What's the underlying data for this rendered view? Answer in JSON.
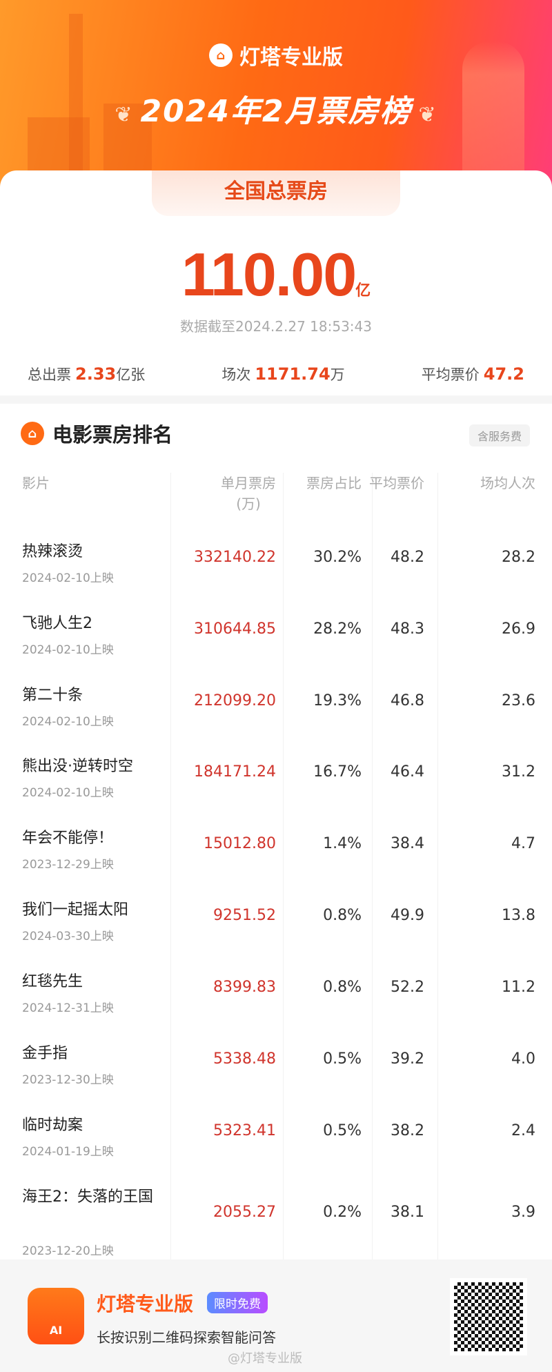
{
  "header": {
    "brand": "灯塔专业版",
    "title": "2024年2月票房榜"
  },
  "summary": {
    "tab": "全国总票房",
    "total": "110.00",
    "unit": "亿",
    "as_of": "数据截至2024.2.27 18:53:43",
    "stats": [
      {
        "label": "总出票",
        "value": "2.33",
        "unit": "亿张"
      },
      {
        "label": "场次",
        "value": "1171.74",
        "unit": "万"
      },
      {
        "label": "平均票价",
        "value": "47.2",
        "unit": ""
      }
    ]
  },
  "ranking": {
    "title": "电影票房排名",
    "note": "含服务费",
    "columns": [
      "影片",
      "单月票房\n(万)",
      "票房占比",
      "平均票价",
      "场均人次"
    ],
    "rows": [
      {
        "name": "热辣滚烫",
        "date": "2024-02-10上映",
        "box": "332140.22",
        "share": "30.2%",
        "price": "48.2",
        "avg": "28.2"
      },
      {
        "name": "飞驰人生2",
        "date": "2024-02-10上映",
        "box": "310644.85",
        "share": "28.2%",
        "price": "48.3",
        "avg": "26.9"
      },
      {
        "name": "第二十条",
        "date": "2024-02-10上映",
        "box": "212099.20",
        "share": "19.3%",
        "price": "46.8",
        "avg": "23.6"
      },
      {
        "name": "熊出没·逆转时空",
        "date": "2024-02-10上映",
        "box": "184171.24",
        "share": "16.7%",
        "price": "46.4",
        "avg": "31.2"
      },
      {
        "name": "年会不能停！",
        "date": "2023-12-29上映",
        "box": "15012.80",
        "share": "1.4%",
        "price": "38.4",
        "avg": "4.7"
      },
      {
        "name": "我们一起摇太阳",
        "date": "2024-03-30上映",
        "box": "9251.52",
        "share": "0.8%",
        "price": "49.9",
        "avg": "13.8"
      },
      {
        "name": "红毯先生",
        "date": "2024-12-31上映",
        "box": "8399.83",
        "share": "0.8%",
        "price": "52.2",
        "avg": "11.2"
      },
      {
        "name": "金手指",
        "date": "2023-12-30上映",
        "box": "5338.48",
        "share": "0.5%",
        "price": "39.2",
        "avg": "4.0"
      },
      {
        "name": "临时劫案",
        "date": "2024-01-19上映",
        "box": "5323.41",
        "share": "0.5%",
        "price": "38.2",
        "avg": "2.4"
      },
      {
        "name": "海王2：失落的王国",
        "date": "2023-12-20上映",
        "box": "2055.27",
        "share": "0.2%",
        "price": "38.1",
        "avg": "3.9"
      }
    ]
  },
  "footer": {
    "app_name": "灯塔专业版",
    "badge": "限时免费",
    "tagline": "长按识别二维码探索智能问答",
    "app_icon_text": "AI",
    "watermark": "@灯塔专业版"
  }
}
